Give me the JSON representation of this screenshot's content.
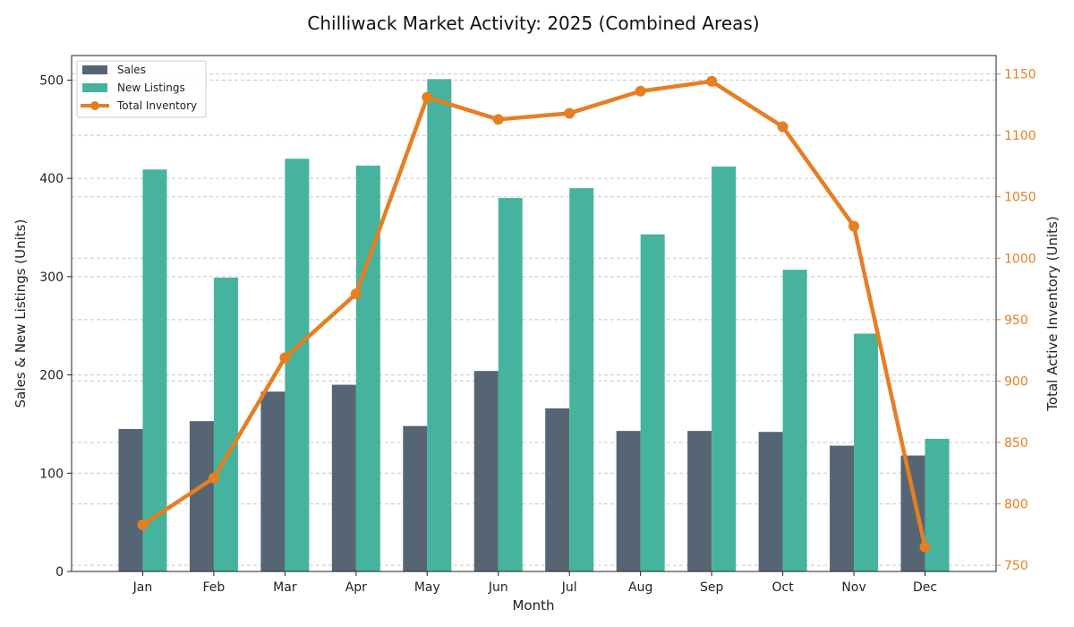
{
  "chart_data": {
    "type": "bar",
    "title": "Chilliwack Market Activity: 2025 (Combined Areas)",
    "xlabel": "Month",
    "ylabel": "Sales & New Listings (Units)",
    "y2label": "Total Active Inventory (Units)",
    "categories": [
      "Jan",
      "Feb",
      "Mar",
      "Apr",
      "May",
      "Jun",
      "Jul",
      "Aug",
      "Sep",
      "Oct",
      "Nov",
      "Dec"
    ],
    "series": [
      {
        "name": "Sales",
        "type": "bar",
        "axis": "left",
        "color": "#566573",
        "values": [
          145,
          153,
          183,
          190,
          148,
          204,
          166,
          143,
          143,
          142,
          128,
          118
        ]
      },
      {
        "name": "New Listings",
        "type": "bar",
        "axis": "left",
        "color": "#45b39d",
        "values": [
          409,
          299,
          420,
          413,
          501,
          380,
          390,
          343,
          412,
          307,
          242,
          135
        ]
      },
      {
        "name": "Total Inventory",
        "type": "line",
        "axis": "right",
        "color": "#e67e22",
        "values": [
          783,
          821,
          919,
          971,
          1131,
          1113,
          1118,
          1136,
          1144,
          1107,
          1026,
          765
        ]
      }
    ],
    "ylim": [
      0,
      525
    ],
    "yticks": [
      0,
      100,
      200,
      300,
      400,
      500
    ],
    "y2lim": [
      745,
      1165
    ],
    "y2ticks": [
      750,
      800,
      850,
      900,
      950,
      1000,
      1050,
      1100,
      1150
    ],
    "grid": true,
    "legend_position": "top-left"
  }
}
